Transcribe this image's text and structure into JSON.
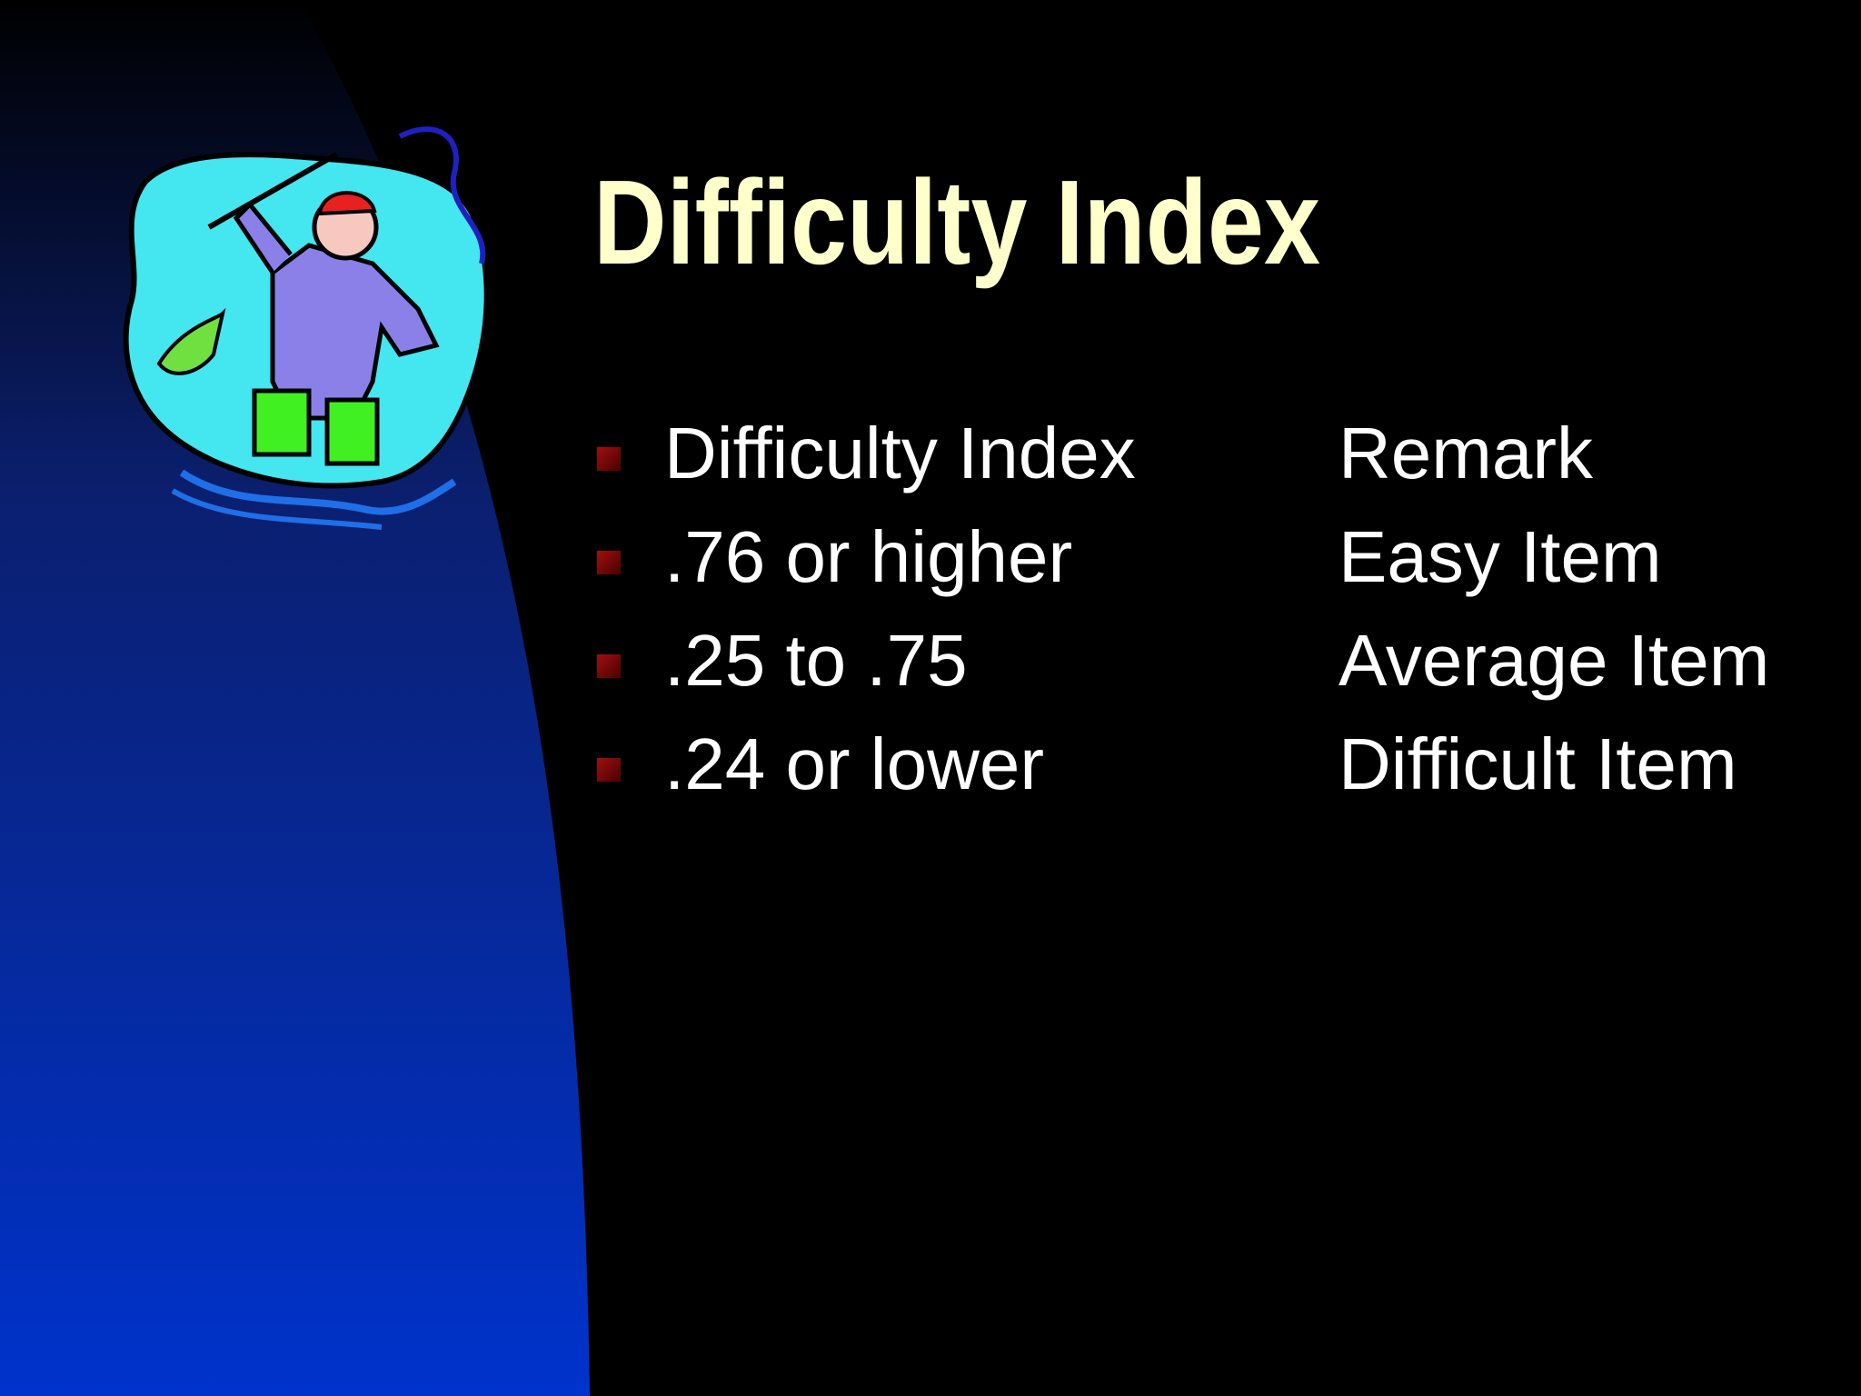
{
  "title": "Difficulty Index",
  "table": {
    "rows": [
      [
        "Difficulty Index",
        "Remark"
      ],
      [
        ".76 or higher",
        "Easy Item"
      ],
      [
        ".25 to .75",
        "Average Item"
      ],
      [
        ".24 or lower",
        "Difficult Item"
      ]
    ]
  }
}
